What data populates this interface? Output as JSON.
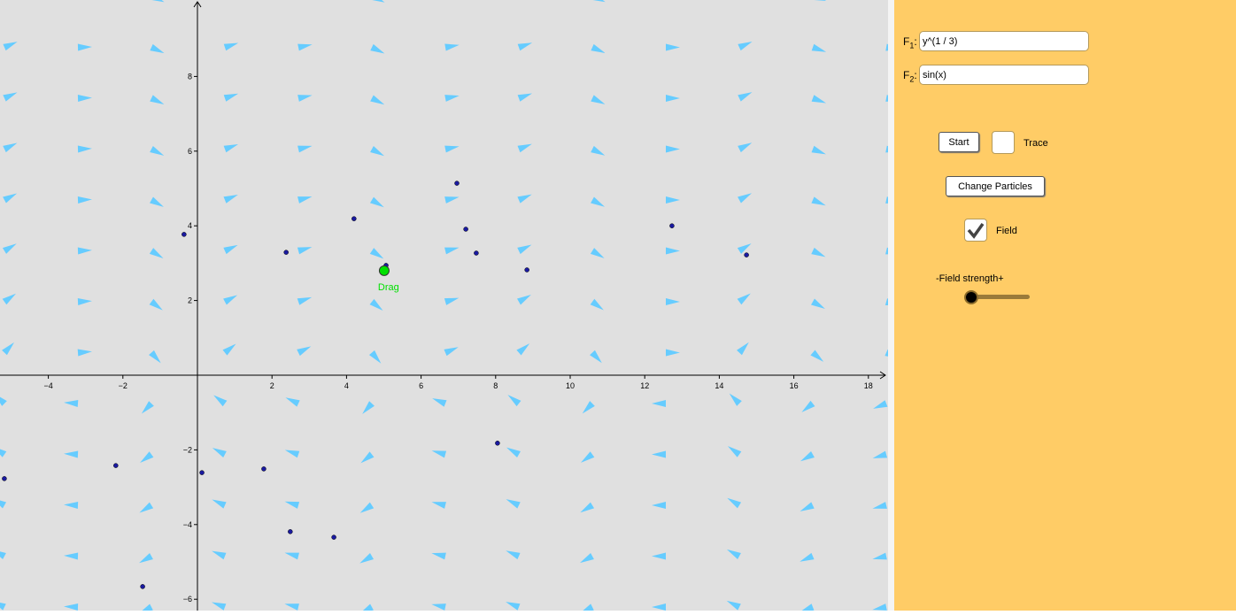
{
  "graphics": {
    "x_ticks": [
      -4,
      -2,
      2,
      4,
      6,
      8,
      10,
      12,
      14,
      16,
      18
    ],
    "y_ticks": [
      -6,
      -4,
      -2,
      2,
      4,
      6,
      8
    ],
    "arrow_color": "#66ccff",
    "particle_color": "#1a1aa0",
    "particles": [
      [
        -0.36,
        3.77
      ],
      [
        2.38,
        3.29
      ],
      [
        4.2,
        4.19
      ],
      [
        5.06,
        2.94
      ],
      [
        6.96,
        5.14
      ],
      [
        7.2,
        3.91
      ],
      [
        7.48,
        3.27
      ],
      [
        8.84,
        2.82
      ],
      [
        12.73,
        4.0
      ],
      [
        14.73,
        3.22
      ],
      [
        -5.18,
        -2.77
      ],
      [
        -2.19,
        -2.42
      ],
      [
        0.12,
        -2.61
      ],
      [
        1.78,
        -2.51
      ],
      [
        8.05,
        -1.82
      ],
      [
        2.49,
        -4.19
      ],
      [
        3.66,
        -4.34
      ],
      [
        -1.47,
        -5.66
      ]
    ],
    "drag_point": {
      "x": 5.01,
      "y": 2.8,
      "label": "Drag",
      "color": "#00e000"
    }
  },
  "panel": {
    "f1_label": "F",
    "f1_sub": "1",
    "f1_value": "y^(1 / 3)",
    "f2_label": "F",
    "f2_sub": "2",
    "f2_value": "sin(x)",
    "start_label": "Start",
    "trace_label": "Trace",
    "trace_checked": false,
    "change_particles_label": "Change Particles",
    "field_label": "Field",
    "field_checked": true,
    "slider_label": "-Field strength+",
    "slider_value_fraction": 0.0,
    "background": "#ffcc66"
  }
}
